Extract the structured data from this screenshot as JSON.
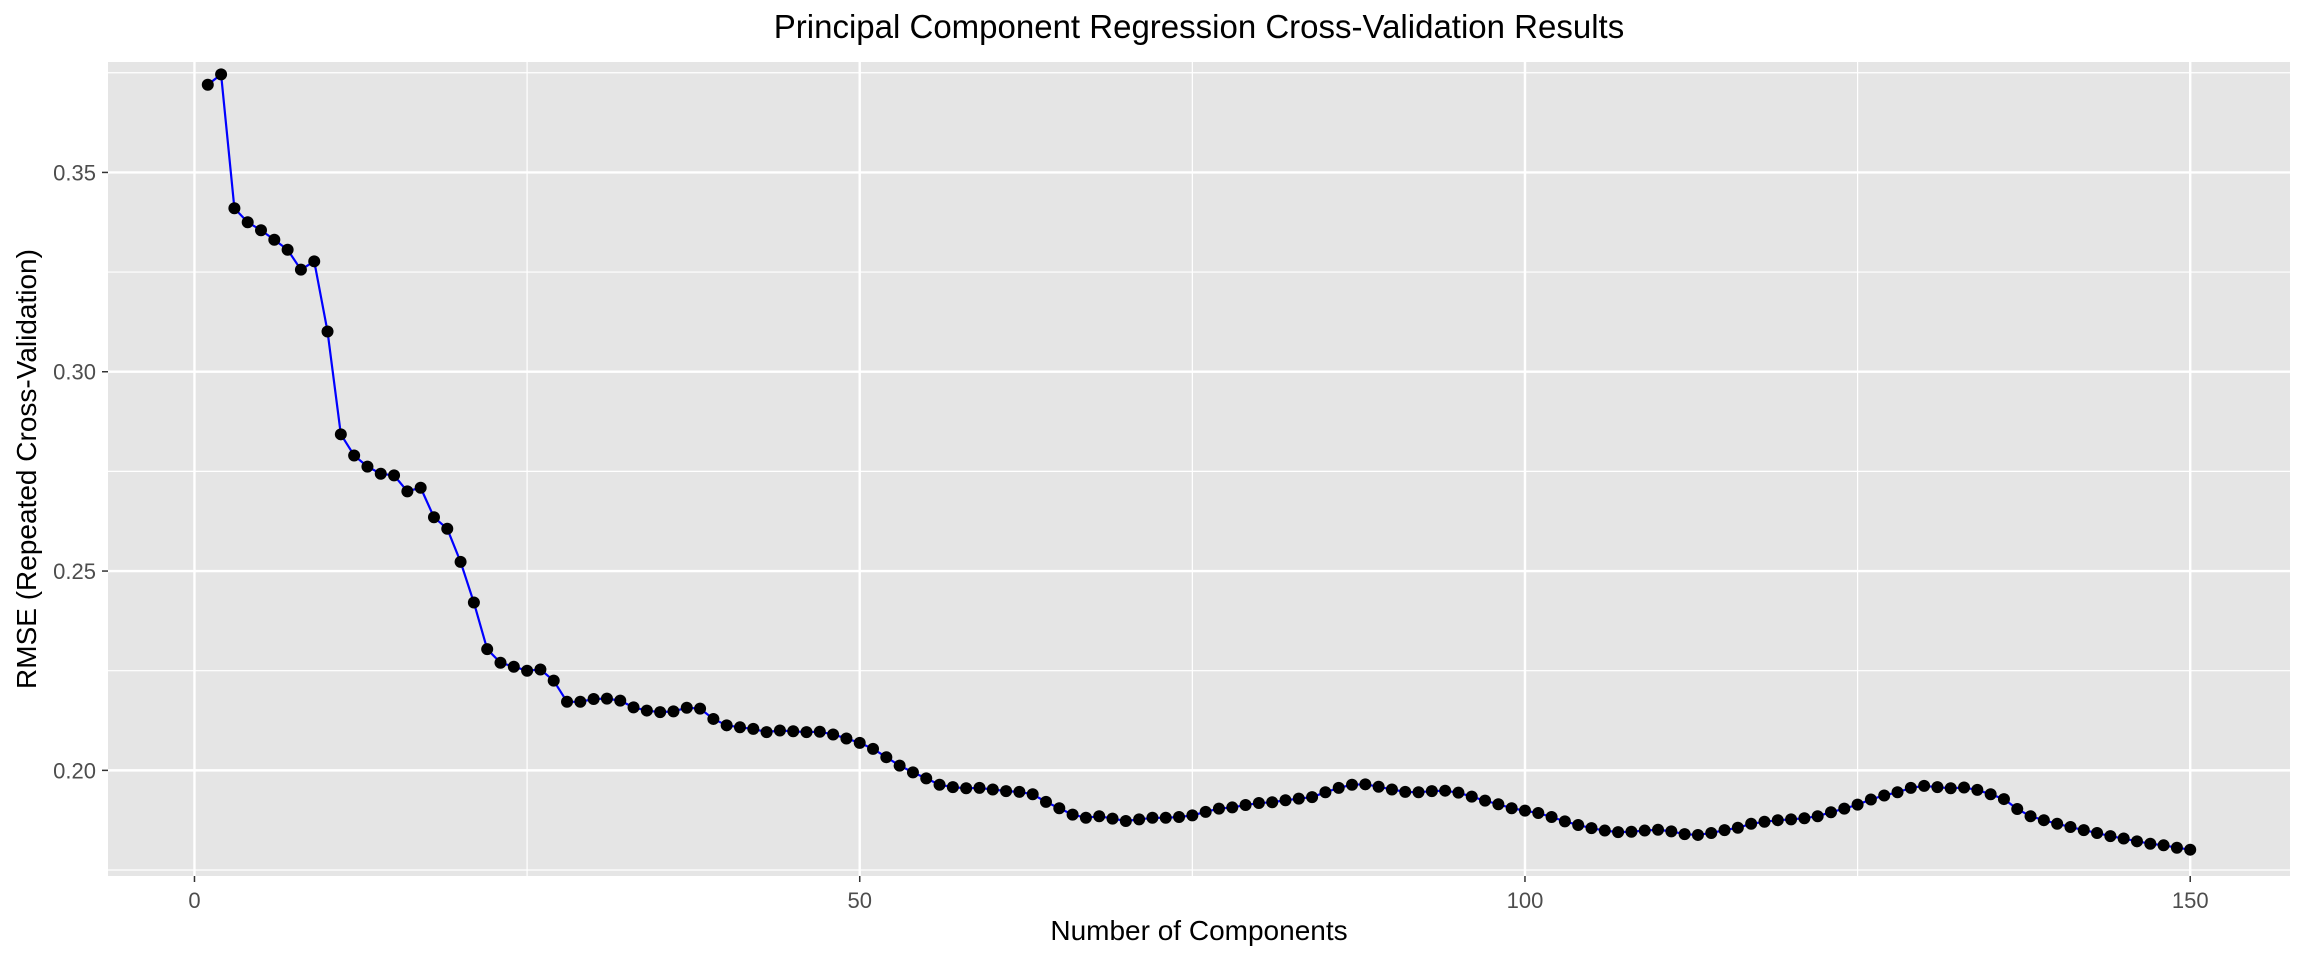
{
  "chart_data": {
    "type": "line",
    "title": "Principal Component Regression Cross-Validation Results",
    "xlabel": "Number of Components",
    "ylabel": "RMSE (Repeated Cross-Validation)",
    "xlim": [
      -6.5,
      157.5
    ],
    "ylim": [
      0.1735,
      0.3777
    ],
    "x_ticks": [
      0,
      50,
      100,
      150
    ],
    "x_tick_labels": [
      "0",
      "50",
      "100",
      "150"
    ],
    "y_ticks": [
      0.2,
      0.25,
      0.3,
      0.35
    ],
    "y_tick_labels": [
      "0.20",
      "0.25",
      "0.30",
      "0.35"
    ],
    "grid": true,
    "colors": {
      "panel_background": "#e5e5e5",
      "gridline": "#ffffff",
      "line": "#0000ff",
      "point": "#000000",
      "tick_text": "#4d4d4d"
    },
    "series": [
      {
        "x": [
          1,
          2,
          3,
          4,
          5,
          6,
          7,
          8,
          9,
          10,
          11,
          12,
          13,
          14,
          15,
          16,
          17,
          18,
          19,
          20,
          21,
          22,
          23,
          24,
          25,
          26,
          27,
          28,
          29,
          30,
          31,
          32,
          33,
          34,
          35,
          36,
          37,
          38,
          39,
          40,
          41,
          42,
          43,
          44,
          45,
          46,
          47,
          48,
          49,
          50,
          51,
          52,
          53,
          54,
          55,
          56,
          57,
          58,
          59,
          60,
          61,
          62,
          63,
          64,
          65,
          66,
          67,
          68,
          69,
          70,
          71,
          72,
          73,
          74,
          75,
          76,
          77,
          78,
          79,
          80,
          81,
          82,
          83,
          84,
          85,
          86,
          87,
          88,
          89,
          90,
          91,
          92,
          93,
          94,
          95,
          96,
          97,
          98,
          99,
          100,
          101,
          102,
          103,
          104,
          105,
          106,
          107,
          108,
          109,
          110,
          111,
          112,
          113,
          114,
          115,
          116,
          117,
          118,
          119,
          120,
          121,
          122,
          123,
          124,
          125,
          126,
          127,
          128,
          129,
          130,
          131,
          132,
          133,
          134,
          135,
          136,
          137,
          138,
          139,
          140,
          141,
          142,
          143,
          144,
          145,
          146,
          147,
          148,
          149,
          150
        ],
        "y": [
          0.372,
          0.3746,
          0.341,
          0.3375,
          0.3355,
          0.3331,
          0.3306,
          0.3256,
          0.3277,
          0.3101,
          0.2843,
          0.279,
          0.2762,
          0.2744,
          0.274,
          0.27,
          0.2709,
          0.2635,
          0.2606,
          0.2523,
          0.2421,
          0.2304,
          0.227,
          0.226,
          0.225,
          0.2253,
          0.2225,
          0.2172,
          0.2172,
          0.2179,
          0.218,
          0.2175,
          0.2158,
          0.215,
          0.2146,
          0.2148,
          0.2157,
          0.2155,
          0.2129,
          0.2113,
          0.2108,
          0.2104,
          0.2096,
          0.21,
          0.2098,
          0.2096,
          0.2097,
          0.209,
          0.208,
          0.2069,
          0.2054,
          0.2033,
          0.2012,
          0.1995,
          0.198,
          0.1964,
          0.1958,
          0.1955,
          0.1956,
          0.1952,
          0.1948,
          0.1946,
          0.194,
          0.1921,
          0.1905,
          0.1889,
          0.1881,
          0.1885,
          0.1879,
          0.1873,
          0.1877,
          0.1881,
          0.1881,
          0.1883,
          0.1887,
          0.1896,
          0.1904,
          0.1907,
          0.1913,
          0.1918,
          0.192,
          0.1925,
          0.1929,
          0.1933,
          0.1945,
          0.1956,
          0.1964,
          0.1965,
          0.1959,
          0.1952,
          0.1946,
          0.1945,
          0.1948,
          0.1949,
          0.1944,
          0.1934,
          0.1924,
          0.1915,
          0.1905,
          0.1899,
          0.1893,
          0.1883,
          0.1872,
          0.1863,
          0.1855,
          0.1849,
          0.1845,
          0.1846,
          0.1849,
          0.1851,
          0.1847,
          0.184,
          0.1838,
          0.1843,
          0.185,
          0.1856,
          0.1866,
          0.1871,
          0.1875,
          0.1877,
          0.188,
          0.1885,
          0.1895,
          0.1904,
          0.1914,
          0.1927,
          0.1937,
          0.1945,
          0.1956,
          0.1961,
          0.1958,
          0.1955,
          0.1957,
          0.1951,
          0.194,
          0.1928,
          0.1903,
          0.1885,
          0.1875,
          0.1866,
          0.1858,
          0.185,
          0.1843,
          0.1835,
          0.1829,
          0.1822,
          0.1816,
          0.1812,
          0.1806,
          0.1801
        ]
      }
    ]
  }
}
